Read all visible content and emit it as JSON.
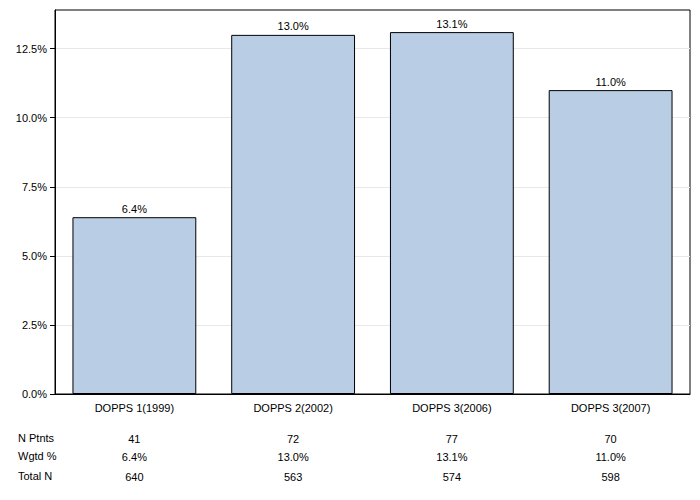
{
  "chart_data": {
    "type": "bar",
    "categories": [
      "DOPPS 1(1999)",
      "DOPPS 2(2002)",
      "DOPPS 3(2006)",
      "DOPPS 3(2007)"
    ],
    "values": [
      6.4,
      13.0,
      13.1,
      11.0
    ],
    "value_labels": [
      "6.4%",
      "13.0%",
      "13.1%",
      "11.0%"
    ],
    "data_labels": true,
    "color": "#b9cde5",
    "ylim": [
      0,
      13.9
    ],
    "yticks": [
      {
        "value": 0,
        "label": "0.0%"
      },
      {
        "value": 2.5,
        "label": "2.5%"
      },
      {
        "value": 5,
        "label": "5.0%"
      },
      {
        "value": 7.5,
        "label": "7.5%"
      },
      {
        "value": 10,
        "label": "10.0%"
      },
      {
        "value": 12.5,
        "label": "12.5%"
      }
    ],
    "grid": true
  },
  "table": {
    "rows": [
      {
        "label": "N Ptnts",
        "values": [
          41,
          72,
          77,
          70
        ]
      },
      {
        "label": "Wgtd %",
        "values": [
          6.4,
          13.0,
          13.1,
          11.0
        ],
        "value_labels": [
          "6.4%",
          "13.0%",
          "13.1%",
          "11.0%"
        ]
      },
      {
        "label": "Total N",
        "values": [
          640,
          563,
          574,
          598
        ]
      }
    ]
  }
}
